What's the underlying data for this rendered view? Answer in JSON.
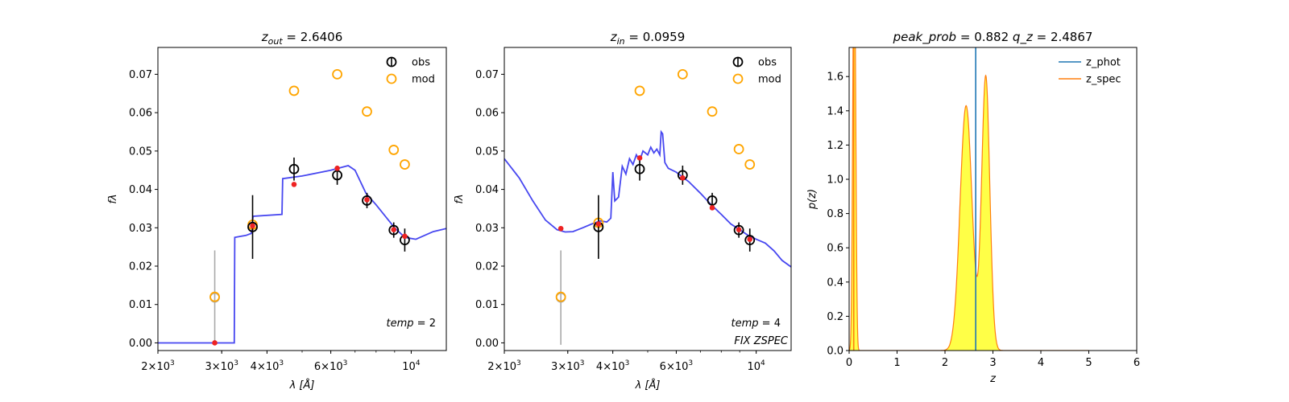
{
  "colors": {
    "obs": "#000000",
    "mod": "#ffa500",
    "sed_line": "#3333ee",
    "model_points": "#ee2222",
    "excluded": "#aaaaaa",
    "z_phot": "#1f77b4",
    "z_spec": "#ff7f0e",
    "pz_fill": "#ffff33"
  },
  "chart_data": [
    {
      "type": "scatter",
      "title": {
        "var": "z",
        "sub": "out",
        "value": "2.6406"
      },
      "xlabel": "λ [Å]",
      "ylabel": "fλ",
      "xscale": "log",
      "xlim": [
        2000,
        12500
      ],
      "ylim": [
        -0.002,
        0.077
      ],
      "xticks": [
        {
          "v": 2000,
          "mant": "2",
          "exp": "3"
        },
        {
          "v": 3000,
          "mant": "3",
          "exp": "3"
        },
        {
          "v": 4000,
          "mant": "4",
          "exp": "3"
        },
        {
          "v": 6000,
          "mant": "6",
          "exp": "3"
        },
        {
          "v": 10000,
          "mant": "",
          "exp": "4"
        }
      ],
      "yticks": [
        "0.00",
        "0.01",
        "0.02",
        "0.03",
        "0.04",
        "0.05",
        "0.06",
        "0.07"
      ],
      "legend": {
        "obs": "obs",
        "mod": "mod",
        "loc": "top-right"
      },
      "annotations": [
        {
          "base": "temp",
          "value": "2"
        }
      ],
      "observations": [
        {
          "x": 3650,
          "y": 0.0302,
          "err": 0.0083
        },
        {
          "x": 4750,
          "y": 0.0453,
          "err": 0.003
        },
        {
          "x": 6250,
          "y": 0.0437,
          "err": 0.0025
        },
        {
          "x": 7550,
          "y": 0.0371,
          "err": 0.002
        },
        {
          "x": 8950,
          "y": 0.0294,
          "err": 0.002
        },
        {
          "x": 9600,
          "y": 0.0268,
          "err": 0.003
        }
      ],
      "excluded_obs": [
        {
          "x": 2870,
          "y": 0.0118,
          "err": 0.0123
        }
      ],
      "model_open": [
        {
          "x": 2870,
          "y": 0.012
        },
        {
          "x": 3650,
          "y": 0.0308
        },
        {
          "x": 4750,
          "y": 0.0657
        },
        {
          "x": 6250,
          "y": 0.07
        },
        {
          "x": 7550,
          "y": 0.0603
        },
        {
          "x": 8950,
          "y": 0.0503
        },
        {
          "x": 9600,
          "y": 0.0465
        }
      ],
      "model_points": [
        {
          "x": 2870,
          "y": 0.0
        },
        {
          "x": 3650,
          "y": 0.0305
        },
        {
          "x": 4750,
          "y": 0.0413
        },
        {
          "x": 6250,
          "y": 0.0455
        },
        {
          "x": 7550,
          "y": 0.0373
        },
        {
          "x": 8950,
          "y": 0.0295
        },
        {
          "x": 9600,
          "y": 0.0278
        }
      ],
      "sed": [
        [
          2000,
          0.0
        ],
        [
          3250,
          0.0
        ],
        [
          3260,
          0.0275
        ],
        [
          3500,
          0.028
        ],
        [
          3620,
          0.0285
        ],
        [
          3660,
          0.033
        ],
        [
          4400,
          0.0335
        ],
        [
          4420,
          0.0428
        ],
        [
          5000,
          0.0435
        ],
        [
          6000,
          0.045
        ],
        [
          6700,
          0.0462
        ],
        [
          7000,
          0.045
        ],
        [
          7500,
          0.039
        ],
        [
          8000,
          0.036
        ],
        [
          9000,
          0.03
        ],
        [
          9600,
          0.0275
        ],
        [
          10300,
          0.027
        ],
        [
          11500,
          0.029
        ],
        [
          12500,
          0.0298
        ]
      ]
    },
    {
      "type": "scatter",
      "title": {
        "var": "z",
        "sub": "in",
        "value": "0.0959"
      },
      "xlabel": "λ [Å]",
      "ylabel": "fλ",
      "xscale": "log",
      "xlim": [
        2000,
        12500
      ],
      "ylim": [
        -0.002,
        0.077
      ],
      "xticks": [
        {
          "v": 2000,
          "mant": "2",
          "exp": "3"
        },
        {
          "v": 3000,
          "mant": "3",
          "exp": "3"
        },
        {
          "v": 4000,
          "mant": "4",
          "exp": "3"
        },
        {
          "v": 6000,
          "mant": "6",
          "exp": "3"
        },
        {
          "v": 10000,
          "mant": "",
          "exp": "4"
        }
      ],
      "yticks": [
        "0.00",
        "0.01",
        "0.02",
        "0.03",
        "0.04",
        "0.05",
        "0.06",
        "0.07"
      ],
      "legend": {
        "obs": "obs",
        "mod": "mod",
        "loc": "top-right"
      },
      "annotations": [
        {
          "base": "temp",
          "value": "4"
        },
        {
          "text": "FIX ZSPEC"
        }
      ],
      "observations": [
        {
          "x": 3650,
          "y": 0.0302,
          "err": 0.0083
        },
        {
          "x": 4750,
          "y": 0.0453,
          "err": 0.003
        },
        {
          "x": 6250,
          "y": 0.0437,
          "err": 0.0025
        },
        {
          "x": 7550,
          "y": 0.0371,
          "err": 0.002
        },
        {
          "x": 8950,
          "y": 0.0294,
          "err": 0.002
        },
        {
          "x": 9600,
          "y": 0.0268,
          "err": 0.003
        }
      ],
      "excluded_obs": [
        {
          "x": 2870,
          "y": 0.0118,
          "err": 0.0123
        }
      ],
      "model_open": [
        {
          "x": 2870,
          "y": 0.012
        },
        {
          "x": 3650,
          "y": 0.0313
        },
        {
          "x": 4750,
          "y": 0.0657
        },
        {
          "x": 6250,
          "y": 0.07
        },
        {
          "x": 7550,
          "y": 0.0603
        },
        {
          "x": 8950,
          "y": 0.0505
        },
        {
          "x": 9600,
          "y": 0.0465
        }
      ],
      "model_points": [
        {
          "x": 2870,
          "y": 0.0298
        },
        {
          "x": 3650,
          "y": 0.031
        },
        {
          "x": 4750,
          "y": 0.0482
        },
        {
          "x": 6250,
          "y": 0.043
        },
        {
          "x": 7550,
          "y": 0.0352
        },
        {
          "x": 8950,
          "y": 0.0295
        },
        {
          "x": 9600,
          "y": 0.027
        }
      ],
      "sed": [
        [
          2000,
          0.048
        ],
        [
          2200,
          0.043
        ],
        [
          2400,
          0.037
        ],
        [
          2600,
          0.032
        ],
        [
          2800,
          0.0295
        ],
        [
          2950,
          0.0289
        ],
        [
          3100,
          0.029
        ],
        [
          3300,
          0.03
        ],
        [
          3500,
          0.031
        ],
        [
          3700,
          0.0318
        ],
        [
          3850,
          0.0315
        ],
        [
          3950,
          0.0325
        ],
        [
          4000,
          0.0445
        ],
        [
          4050,
          0.037
        ],
        [
          4150,
          0.038
        ],
        [
          4250,
          0.046
        ],
        [
          4350,
          0.044
        ],
        [
          4450,
          0.048
        ],
        [
          4550,
          0.0465
        ],
        [
          4650,
          0.049
        ],
        [
          4750,
          0.0475
        ],
        [
          4850,
          0.05
        ],
        [
          5000,
          0.049
        ],
        [
          5100,
          0.051
        ],
        [
          5200,
          0.0495
        ],
        [
          5300,
          0.0505
        ],
        [
          5400,
          0.049
        ],
        [
          5450,
          0.055
        ],
        [
          5500,
          0.0545
        ],
        [
          5580,
          0.047
        ],
        [
          5700,
          0.0455
        ],
        [
          6000,
          0.0445
        ],
        [
          6500,
          0.042
        ],
        [
          7000,
          0.039
        ],
        [
          7500,
          0.036
        ],
        [
          8000,
          0.0335
        ],
        [
          8500,
          0.031
        ],
        [
          9000,
          0.0295
        ],
        [
          9500,
          0.028
        ],
        [
          10000,
          0.027
        ],
        [
          10600,
          0.026
        ],
        [
          11200,
          0.024
        ],
        [
          11800,
          0.0215
        ],
        [
          12500,
          0.0198
        ]
      ]
    },
    {
      "type": "area",
      "title": {
        "left_var": "peak_prob",
        "left_value": "0.882",
        "right_var": "q_z",
        "right_value": "2.4867"
      },
      "xlabel": "z",
      "ylabel": "p(z)",
      "xlim": [
        0,
        6
      ],
      "ylim": [
        0,
        1.77
      ],
      "xticks": [
        "0",
        "1",
        "2",
        "3",
        "4",
        "5",
        "6"
      ],
      "yticks": [
        "0.0",
        "0.2",
        "0.4",
        "0.6",
        "0.8",
        "1.0",
        "1.2",
        "1.4",
        "1.6"
      ],
      "legend": {
        "z_phot": "z_phot",
        "z_spec": "z_spec",
        "loc": "top-right"
      },
      "z_phot": 2.6406,
      "z_spec": 0.0959,
      "pz_range": [
        0,
        5
      ],
      "pz_components": [
        {
          "mu": 2.44,
          "sigma": 0.125,
          "amp": 1.43
        },
        {
          "mu": 2.85,
          "sigma": 0.085,
          "amp": 1.6
        },
        {
          "mu": 0.13,
          "sigma": 0.022,
          "amp": 1.03
        }
      ],
      "pz_spike": {
        "z": 0.0959,
        "width": 0.025,
        "amp": 2.0
      }
    }
  ]
}
